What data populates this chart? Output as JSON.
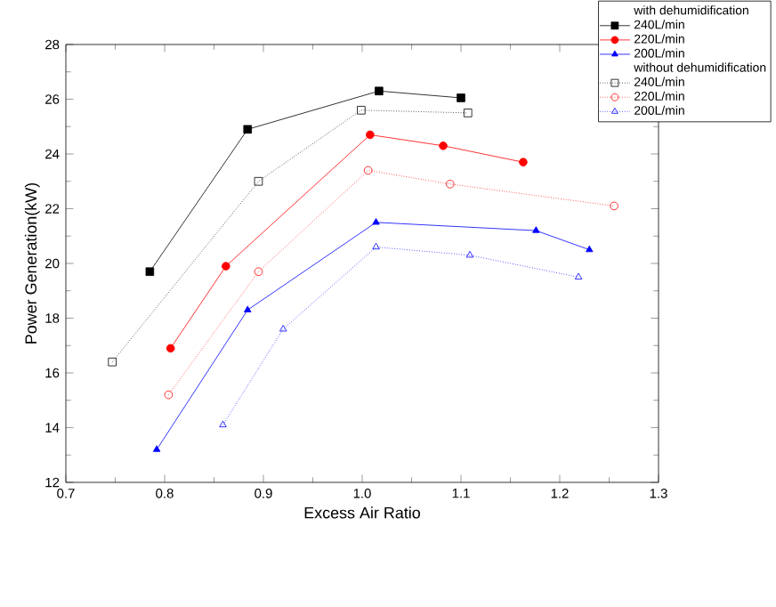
{
  "chart_data": {
    "type": "line",
    "xlabel": "Excess Air Ratio",
    "ylabel": "Power Generation(kW)",
    "xlim": [
      0.7,
      1.3
    ],
    "xticks": [
      0.7,
      0.8,
      0.9,
      {
        "value": 1,
        "label": "1.0"
      },
      1.1,
      1.2,
      1.3
    ],
    "ylim": [
      12,
      28
    ],
    "yticks": [
      12,
      14,
      16,
      18,
      20,
      22,
      24,
      26,
      28
    ],
    "legend": "top right",
    "grid": false,
    "annotations": [
      "with dehumidification",
      "without dehumidification"
    ],
    "series": [
      {
        "name": "240L/min",
        "color": "#000000",
        "marker": "square",
        "line_style": "solid",
        "x": [
          0.785,
          0.884,
          1.017,
          1.1
        ],
        "values": [
          19.7,
          24.9,
          26.3,
          26.05
        ]
      },
      {
        "name": "220L/min",
        "color": "#ff0000",
        "marker": "circle",
        "line_style": "solid",
        "x": [
          0.806,
          0.862,
          1.008,
          1.082,
          1.163
        ],
        "values": [
          16.9,
          19.9,
          24.7,
          24.3,
          23.7
        ]
      },
      {
        "name": "200L/min",
        "color": "#0000ff",
        "marker": "triangle",
        "line_style": "solid",
        "x": [
          0.792,
          0.884,
          1.014,
          1.176,
          1.23
        ],
        "values": [
          13.2,
          18.3,
          21.5,
          21.2,
          20.5
        ]
      },
      {
        "name": "240L/min",
        "color": "#000000",
        "marker": "square",
        "line_style": "dotted",
        "x": [
          0.747,
          0.895,
          0.999,
          1.107
        ],
        "values": [
          16.4,
          23.0,
          25.6,
          25.5
        ]
      },
      {
        "name": "220L/min",
        "color": "#ff0000",
        "marker": "circle",
        "line_style": "dotted",
        "x": [
          0.804,
          0.895,
          1.006,
          1.089,
          1.255
        ],
        "values": [
          15.2,
          19.7,
          23.4,
          22.9,
          22.1
        ]
      },
      {
        "name": "200L/min",
        "color": "#0000ff",
        "marker": "triangle",
        "line_style": "dotted",
        "x": [
          0.859,
          0.92,
          1.014,
          1.109,
          1.219
        ],
        "values": [
          14.1,
          17.6,
          20.6,
          20.3,
          19.5
        ]
      }
    ]
  }
}
